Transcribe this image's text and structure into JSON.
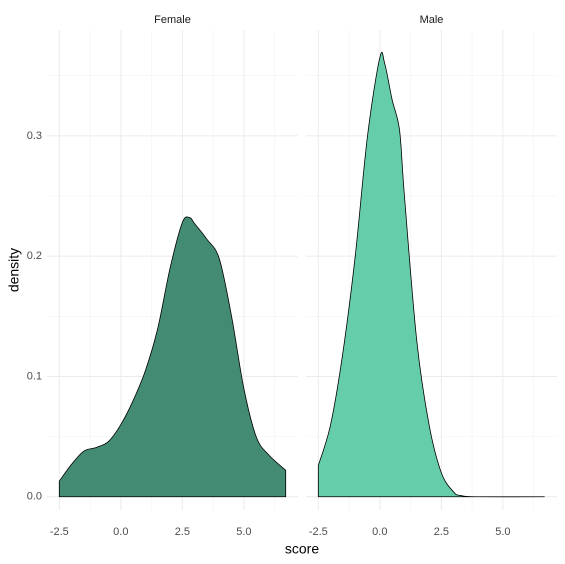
{
  "chart_data": {
    "type": "density",
    "x_label": "score",
    "y_label": "density",
    "xlim": [
      -3,
      7.2
    ],
    "ylim": [
      -0.011,
      0.388
    ],
    "xticks": [
      -2.5,
      {
        "value": 0,
        "label": "0.0"
      },
      2.5,
      {
        "value": 5,
        "label": "5.0"
      }
    ],
    "x_minor_ticks": [
      -1.25,
      1.25,
      3.75,
      6.25
    ],
    "yticks": [
      {
        "value": 0,
        "label": "0.0"
      },
      0.1,
      0.2,
      0.3
    ],
    "y_minor_ticks": [
      0.05,
      0.15,
      0.25,
      0.35
    ],
    "grid": true,
    "facets": [
      {
        "name": "Female",
        "color": "#448b73",
        "x": [
          -2.5,
          -2.0,
          -1.5,
          -1.0,
          -0.5,
          0.0,
          0.5,
          1.0,
          1.5,
          2.0,
          2.5,
          2.8,
          3.0,
          3.5,
          4.0,
          4.5,
          5.0,
          5.5,
          6.0,
          6.7
        ],
        "values": [
          0.013,
          0.027,
          0.038,
          0.041,
          0.046,
          0.06,
          0.08,
          0.105,
          0.14,
          0.19,
          0.228,
          0.232,
          0.227,
          0.214,
          0.198,
          0.15,
          0.09,
          0.05,
          0.035,
          0.022
        ]
      },
      {
        "name": "Male",
        "color": "#66cdaa",
        "x": [
          -2.5,
          -2.0,
          -1.5,
          -1.0,
          -0.5,
          0.0,
          0.2,
          0.5,
          0.8,
          1.0,
          1.5,
          2.0,
          2.5,
          3.0,
          3.3,
          4.0,
          6.7
        ],
        "values": [
          0.026,
          0.06,
          0.12,
          0.2,
          0.3,
          0.365,
          0.36,
          0.33,
          0.305,
          0.25,
          0.13,
          0.06,
          0.02,
          0.004,
          0.001,
          0,
          0
        ]
      }
    ]
  }
}
